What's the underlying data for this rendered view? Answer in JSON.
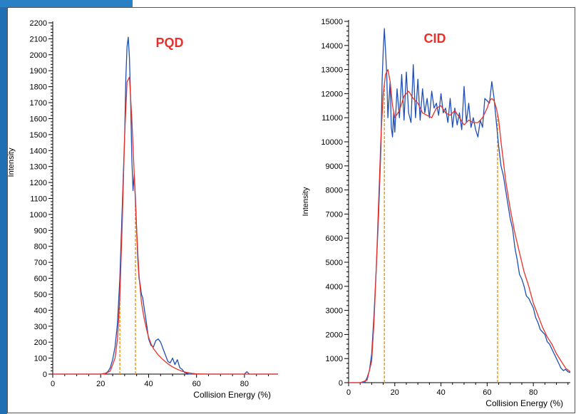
{
  "colors": {
    "raw": "#1f4fb5",
    "fit": "#e8312a",
    "marker": "#f29a1a",
    "frame_accent": "#1f6fb2"
  },
  "chart_data": [
    {
      "type": "line",
      "title": "PQD",
      "xlabel": "Collision Energy (%)",
      "ylabel": "Intensity",
      "xlim": [
        0,
        94
      ],
      "ylim": [
        0,
        2200
      ],
      "xticks": [
        0,
        20,
        40,
        60,
        80
      ],
      "yticks": [
        0,
        100,
        200,
        300,
        400,
        500,
        600,
        700,
        800,
        900,
        1000,
        1100,
        1200,
        1300,
        1400,
        1500,
        1600,
        1700,
        1800,
        1900,
        2000,
        2100,
        2200
      ],
      "markers_x": [
        28,
        34.5
      ],
      "series": [
        {
          "role": "raw",
          "x": [
            0,
            5,
            10,
            15,
            20,
            22,
            23,
            24,
            25,
            26,
            27,
            28,
            29,
            30,
            30.5,
            31,
            31.5,
            32,
            32.5,
            33,
            33.5,
            34,
            34.5,
            35,
            35.5,
            36,
            36.5,
            37,
            37.5,
            38,
            39,
            40,
            41,
            42,
            43,
            44,
            45,
            46,
            47,
            48,
            49,
            50,
            51,
            52,
            53,
            54,
            55,
            56,
            57,
            58,
            60,
            65,
            70,
            75,
            80,
            81,
            82,
            83,
            85,
            90,
            94
          ],
          "y": [
            0,
            0,
            0,
            0,
            0,
            5,
            15,
            40,
            90,
            170,
            320,
            600,
            1050,
            1500,
            1850,
            2050,
            2110,
            1980,
            1700,
            1350,
            1150,
            1250,
            1100,
            900,
            720,
            600,
            560,
            500,
            480,
            430,
            330,
            220,
            180,
            170,
            210,
            220,
            200,
            160,
            120,
            80,
            70,
            100,
            60,
            90,
            40,
            30,
            10,
            5,
            0,
            0,
            0,
            0,
            0,
            0,
            0,
            15,
            0,
            0,
            0,
            0,
            0
          ]
        },
        {
          "role": "fit",
          "x": [
            0,
            5,
            10,
            15,
            20,
            22,
            24,
            26,
            27,
            28,
            29,
            30,
            31,
            32,
            33,
            34,
            35,
            36,
            37,
            38,
            39,
            40,
            41,
            42,
            43,
            44,
            46,
            48,
            50,
            52,
            54,
            56,
            58,
            60,
            65,
            70,
            80,
            90,
            94
          ],
          "y": [
            0,
            0,
            0,
            0,
            0,
            3,
            20,
            100,
            220,
            480,
            950,
            1500,
            1830,
            1860,
            1600,
            1250,
            900,
            620,
            450,
            360,
            290,
            230,
            190,
            160,
            140,
            120,
            90,
            65,
            45,
            30,
            18,
            10,
            5,
            2,
            0,
            0,
            0,
            0,
            0
          ]
        }
      ]
    },
    {
      "type": "line",
      "title": "CID",
      "xlabel": "Collision Energy (%)",
      "ylabel": "Intensity",
      "xlim": [
        0,
        96
      ],
      "ylim": [
        0,
        15000
      ],
      "xticks": [
        0,
        20,
        40,
        60,
        80
      ],
      "yticks": [
        0,
        1000,
        2000,
        3000,
        4000,
        5000,
        6000,
        7000,
        8000,
        9000,
        10000,
        11000,
        12000,
        13000,
        14000,
        15000
      ],
      "markers_x": [
        15.5,
        64.5
      ],
      "series": [
        {
          "role": "raw",
          "x": [
            0,
            5,
            7,
            8,
            9,
            10,
            11,
            12,
            13,
            14,
            14.5,
            15,
            15.5,
            16,
            16.5,
            17,
            17.5,
            18,
            18.5,
            19,
            19.5,
            20,
            21,
            22,
            23,
            24,
            25,
            26,
            27,
            28,
            29,
            30,
            31,
            32,
            33,
            34,
            35,
            36,
            37,
            38,
            39,
            40,
            41,
            42,
            43,
            44,
            45,
            46,
            47,
            48,
            49,
            50,
            51,
            52,
            53,
            54,
            55,
            56,
            57,
            58,
            59,
            60,
            61,
            62,
            63,
            64,
            65,
            66,
            67,
            68,
            69,
            70,
            71,
            72,
            73,
            74,
            75,
            76,
            77,
            78,
            79,
            80,
            81,
            82,
            83,
            84,
            85,
            86,
            87,
            88,
            89,
            90,
            91,
            92,
            93,
            94,
            95,
            96
          ],
          "y": [
            0,
            0,
            20,
            200,
            500,
            1200,
            2800,
            4800,
            7000,
            9800,
            12500,
            13800,
            14700,
            13800,
            12800,
            11000,
            11800,
            12500,
            10600,
            10200,
            11200,
            10400,
            12200,
            11000,
            12800,
            10900,
            12900,
            11200,
            10800,
            13200,
            11000,
            12600,
            10900,
            12200,
            11200,
            11800,
            11000,
            12100,
            11400,
            11600,
            11100,
            12000,
            11200,
            11400,
            10800,
            11800,
            10600,
            11400,
            10700,
            11200,
            10500,
            12300,
            10800,
            11600,
            10600,
            11000,
            10500,
            10200,
            10900,
            10600,
            11800,
            11700,
            11600,
            12500,
            11800,
            10800,
            9800,
            9000,
            8600,
            8000,
            7400,
            6800,
            6400,
            5600,
            5100,
            4500,
            4300,
            4000,
            3600,
            3500,
            3300,
            3100,
            2700,
            2500,
            2200,
            2100,
            2000,
            1700,
            1600,
            1400,
            1200,
            1000,
            800,
            600,
            500,
            550,
            450,
            420
          ],
          "__note": ""
        },
        {
          "role": "fit",
          "x": [
            0,
            5,
            8,
            10,
            11,
            12,
            13,
            14,
            15,
            16,
            17,
            18,
            19,
            20,
            22,
            24,
            26,
            28,
            30,
            32,
            34,
            36,
            38,
            40,
            42,
            44,
            46,
            48,
            50,
            52,
            54,
            56,
            58,
            60,
            61,
            62,
            63,
            64,
            65,
            66,
            67,
            68,
            70,
            72,
            74,
            76,
            78,
            80,
            82,
            84,
            86,
            88,
            90,
            92,
            94,
            96
          ],
          "y": [
            0,
            0,
            100,
            900,
            2500,
            4800,
            7500,
            10200,
            12000,
            12800,
            13000,
            12500,
            11500,
            11000,
            11300,
            11900,
            12100,
            11800,
            11600,
            11200,
            11100,
            11000,
            11400,
            11500,
            11200,
            11100,
            11300,
            11000,
            10700,
            10900,
            10800,
            10800,
            11000,
            11400,
            11700,
            11800,
            11700,
            11400,
            10900,
            10000,
            9200,
            8400,
            7200,
            6200,
            5400,
            4600,
            4000,
            3300,
            2800,
            2300,
            1900,
            1600,
            1200,
            900,
            600,
            450
          ]
        }
      ]
    }
  ]
}
